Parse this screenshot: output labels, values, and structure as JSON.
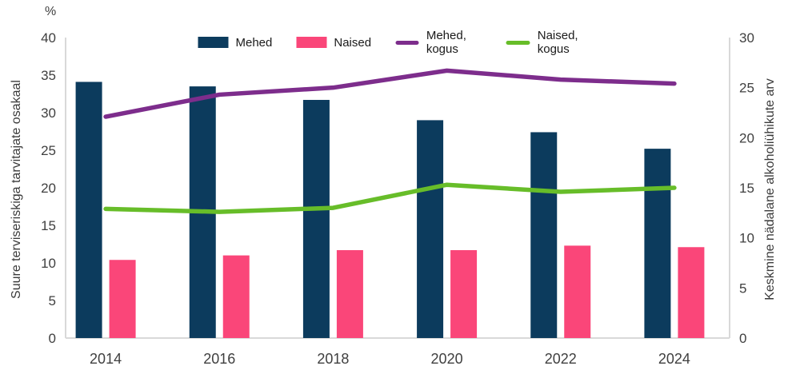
{
  "chart_data": {
    "type": "combo-bar-line",
    "title": "",
    "categories": [
      "2014",
      "2016",
      "2018",
      "2020",
      "2022",
      "2024"
    ],
    "series": [
      {
        "name": "Mehed",
        "type": "bar",
        "axis": "left",
        "color": "#0c3b5d",
        "values": [
          34.1,
          33.5,
          31.7,
          29.0,
          27.4,
          25.2
        ]
      },
      {
        "name": "Naised",
        "type": "bar",
        "axis": "left",
        "color": "#fa4679",
        "values": [
          10.4,
          11.0,
          11.7,
          11.7,
          12.3,
          12.1
        ]
      },
      {
        "name": "Mehed, kogus",
        "type": "line",
        "axis": "right",
        "color": "#7d2d8c",
        "values": [
          22.1,
          24.3,
          25.0,
          26.7,
          25.8,
          25.4
        ]
      },
      {
        "name": "Naised, kogus",
        "type": "line",
        "axis": "right",
        "color": "#67bd29",
        "values": [
          12.9,
          12.6,
          13.0,
          15.3,
          14.6,
          15.0
        ]
      }
    ],
    "left_axis": {
      "unit_label": "%",
      "title": "Suure terviseriskiga tarvitajate osakaal",
      "min": 0,
      "max": 40,
      "step": 5,
      "ticks": [
        "0",
        "5",
        "10",
        "15",
        "20",
        "25",
        "30",
        "35",
        "40"
      ]
    },
    "right_axis": {
      "title": "Keskmine nädalane alkoholiühikute arv",
      "min": 0,
      "max": 30,
      "step": 5,
      "ticks": [
        "0",
        "5",
        "10",
        "15",
        "20",
        "25",
        "30"
      ]
    },
    "legend_position": "top",
    "grid": false
  },
  "colors": {
    "axis_line": "#d9d9d9",
    "tick_text": "#3f3f3f",
    "legend_text": "#1a1a1a",
    "background": "#ffffff"
  }
}
